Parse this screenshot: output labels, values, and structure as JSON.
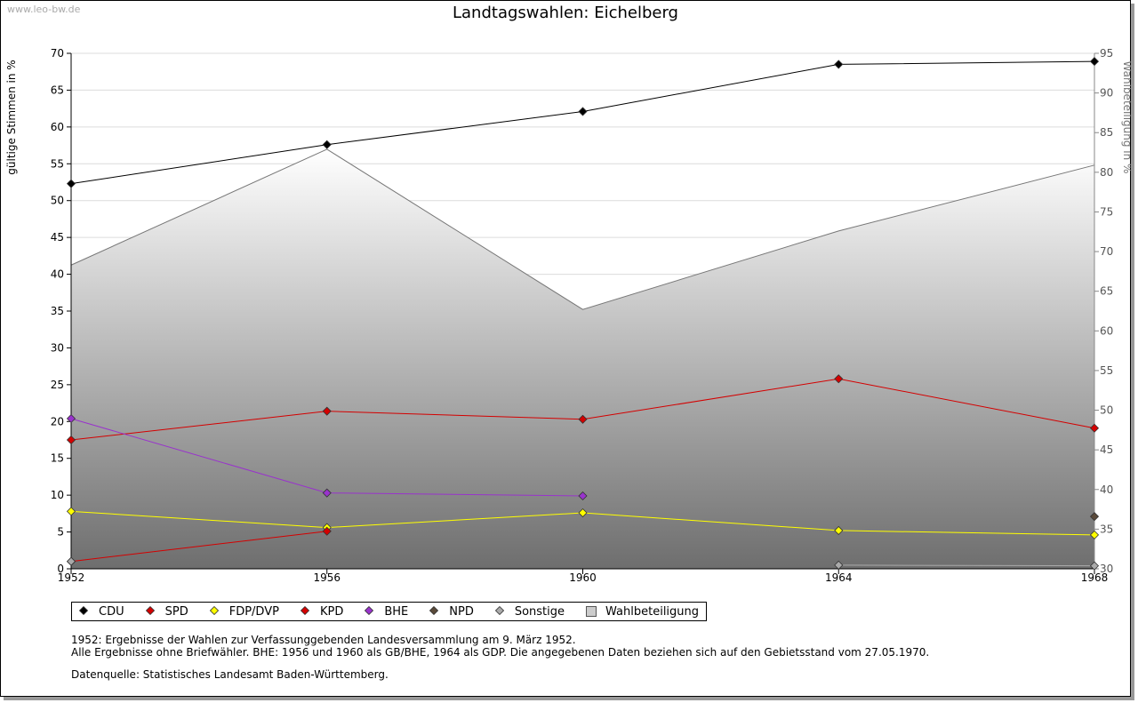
{
  "watermark": "www.leo-bw.de",
  "chart_data": {
    "type": "line",
    "title": "Landtagswahlen: Eichelberg",
    "ylabel": "gültige Stimmen in %",
    "y2label": "Wahlbeteiligung in %",
    "x": [
      "1952",
      "1956",
      "1960",
      "1964",
      "1968"
    ],
    "ylim": [
      0,
      70
    ],
    "y2lim": [
      30,
      95
    ],
    "yticks": [
      0,
      5,
      10,
      15,
      20,
      25,
      30,
      35,
      40,
      45,
      50,
      55,
      60,
      65,
      70
    ],
    "y2ticks": [
      30,
      35,
      40,
      45,
      50,
      55,
      60,
      65,
      70,
      75,
      80,
      85,
      90,
      95
    ],
    "grid": true,
    "legend_position": "bottom",
    "series": [
      {
        "name": "CDU",
        "color": "#000000",
        "values": [
          52.3,
          57.6,
          62.1,
          68.5,
          68.9
        ]
      },
      {
        "name": "SPD",
        "color": "#d40000",
        "values": [
          17.5,
          21.4,
          20.3,
          25.8,
          19.1
        ]
      },
      {
        "name": "FDP/DVP",
        "color": "#ffff00",
        "values": [
          7.8,
          5.6,
          7.6,
          5.2,
          4.6
        ]
      },
      {
        "name": "KPD",
        "color": "#d40000",
        "values": [
          1.0,
          5.1,
          null,
          null,
          null
        ]
      },
      {
        "name": "BHE",
        "color": "#9933cc",
        "values": [
          20.4,
          10.3,
          9.9,
          null,
          null
        ]
      },
      {
        "name": "NPD",
        "color": "#5a4a3a",
        "values": [
          null,
          null,
          null,
          null,
          7.1
        ]
      },
      {
        "name": "Sonstige",
        "color": "#aaaaaa",
        "values": [
          1.0,
          null,
          null,
          0.5,
          0.4
        ]
      }
    ],
    "turnout": {
      "name": "Wahlbeteiligung",
      "axis": "right",
      "values": [
        68.3,
        82.9,
        62.7,
        72.6,
        80.9
      ]
    }
  },
  "notes": [
    "1952: Ergebnisse der Wahlen zur Verfassunggebenden Landesversammlung am 9. März 1952.",
    "Alle Ergebnisse ohne Briefwähler. BHE: 1956 und 1960 als GB/BHE, 1964 als GDP. Die angegebenen Daten beziehen sich auf den Gebietsstand vom 27.05.1970."
  ],
  "source": "Datenquelle: Statistisches Landesamt Baden-Württemberg."
}
